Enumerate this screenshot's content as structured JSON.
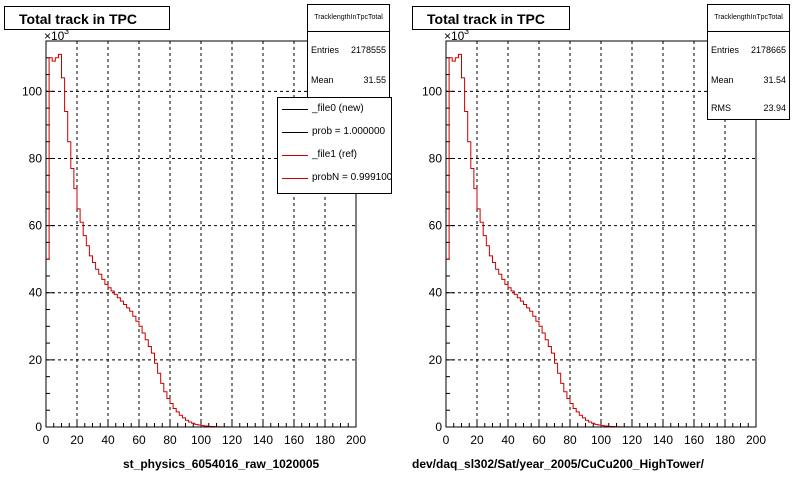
{
  "chart_data": [
    {
      "type": "line",
      "title": "Total track in TPC",
      "xlabel": "st_physics_6054016_raw_1020005",
      "ylabel": "",
      "y_multiplier": "×10",
      "y_multiplier_exp": "3",
      "xlim": [
        0,
        200
      ],
      "ylim": [
        0,
        115
      ],
      "x_ticks": [
        0,
        20,
        40,
        60,
        80,
        100,
        120,
        140,
        160,
        180,
        200
      ],
      "y_ticks": [
        0,
        20,
        40,
        60,
        80,
        100
      ],
      "grid": true,
      "stats": {
        "name": "TracklengthInTpcTotal",
        "entries_label": "Entries",
        "entries_value": "2178555",
        "mean_label": "Mean",
        "mean_value": "31.55"
      },
      "legend": [
        {
          "text": "_file0 (new)",
          "color": "#000000"
        },
        {
          "text": "prob = 1.000000",
          "color": "#000000"
        },
        {
          "text": "_file1 (ref)",
          "color": "#cc0000"
        },
        {
          "text": "probN = 0.999100",
          "color": "#cc0000"
        }
      ],
      "series": [
        {
          "color": "#cc0000",
          "x": [
            0,
            2,
            4,
            6,
            8,
            10,
            12,
            14,
            16,
            18,
            20,
            22,
            24,
            26,
            28,
            30,
            32,
            34,
            36,
            38,
            40,
            42,
            44,
            46,
            48,
            50,
            52,
            54,
            56,
            58,
            60,
            62,
            64,
            66,
            68,
            70,
            72,
            74,
            76,
            78,
            80,
            82,
            84,
            86,
            88,
            90,
            92,
            94,
            96,
            98,
            100,
            102,
            104,
            106,
            108,
            110,
            112,
            114,
            116,
            118,
            120,
            122,
            124,
            126,
            128,
            130
          ],
          "y": [
            50,
            110,
            109,
            110,
            111,
            104,
            94,
            85,
            77,
            71,
            65,
            61,
            57,
            54,
            51,
            49,
            47,
            45.5,
            44,
            42.5,
            41.5,
            40.5,
            39.5,
            38.5,
            37.5,
            36.5,
            35.5,
            34.5,
            33,
            31.5,
            30,
            28,
            26,
            24,
            22,
            19,
            16,
            13,
            10.5,
            8.5,
            7,
            5.5,
            4.5,
            3.5,
            2.7,
            2,
            1.5,
            1.1,
            0.8,
            0.6,
            0.4,
            0.3,
            0.2,
            0.15,
            0.1,
            0.07,
            0.05,
            0.03,
            0.02,
            0.01,
            0.01,
            0,
            0,
            0,
            0,
            0
          ]
        }
      ]
    },
    {
      "type": "line",
      "title": "Total track in TPC",
      "xlabel": "dev/daq_sl302/Sat/year_2005/CuCu200_HighTower/",
      "ylabel": "",
      "y_multiplier": "×10",
      "y_multiplier_exp": "3",
      "xlim": [
        0,
        200
      ],
      "ylim": [
        0,
        115
      ],
      "x_ticks": [
        0,
        20,
        40,
        60,
        80,
        100,
        120,
        140,
        160,
        180,
        200
      ],
      "y_ticks": [
        0,
        20,
        40,
        60,
        80,
        100
      ],
      "grid": true,
      "stats": {
        "name": "TracklengthInTpcTotal",
        "entries_label": "Entries",
        "entries_value": "2178665",
        "mean_label": "Mean",
        "mean_value": "31.54",
        "rms_label": "RMS",
        "rms_value": "23.94"
      },
      "series": [
        {
          "color": "#cc0000",
          "x": [
            0,
            2,
            4,
            6,
            8,
            10,
            12,
            14,
            16,
            18,
            20,
            22,
            24,
            26,
            28,
            30,
            32,
            34,
            36,
            38,
            40,
            42,
            44,
            46,
            48,
            50,
            52,
            54,
            56,
            58,
            60,
            62,
            64,
            66,
            68,
            70,
            72,
            74,
            76,
            78,
            80,
            82,
            84,
            86,
            88,
            90,
            92,
            94,
            96,
            98,
            100,
            102,
            104,
            106,
            108,
            110,
            112,
            114,
            116,
            118,
            120,
            122,
            124,
            126,
            128,
            130
          ],
          "y": [
            50,
            110,
            109,
            110,
            111,
            104,
            94,
            85,
            77,
            71,
            65,
            61,
            57,
            54,
            51,
            49,
            47,
            45.5,
            44,
            42.5,
            41.5,
            40.5,
            39.5,
            38.5,
            37.5,
            36.5,
            35.5,
            34.5,
            33,
            31.5,
            30,
            28,
            26,
            24,
            22,
            19,
            16,
            13,
            10.5,
            8.5,
            7,
            5.5,
            4.5,
            3.5,
            2.7,
            2,
            1.5,
            1.1,
            0.8,
            0.6,
            0.4,
            0.3,
            0.2,
            0.15,
            0.1,
            0.07,
            0.05,
            0.03,
            0.02,
            0.01,
            0.01,
            0,
            0,
            0,
            0,
            0
          ]
        }
      ]
    }
  ]
}
